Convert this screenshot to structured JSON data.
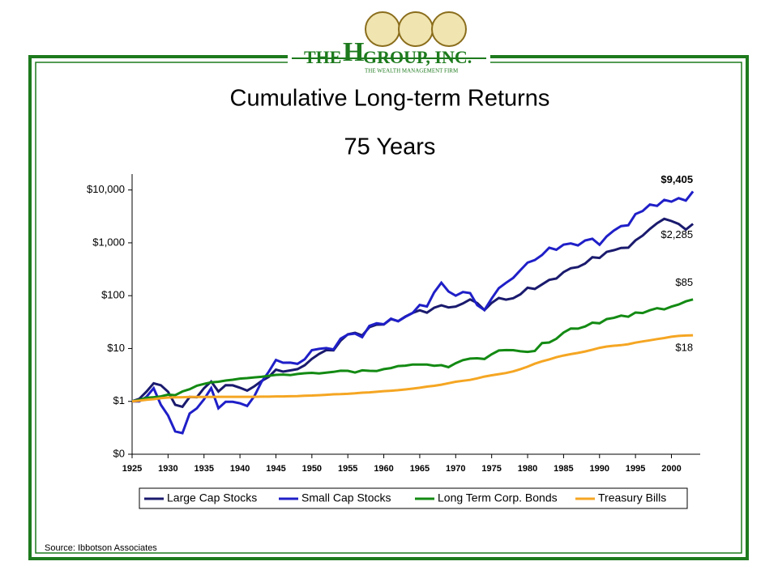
{
  "header": {
    "logo_the": "THE",
    "logo_h": "H",
    "logo_group": "GROUP, INC.",
    "logo_tagline": "THE WEALTH MANAGEMENT FIRM"
  },
  "chart_data": {
    "type": "line",
    "title": "Cumulative Long-term Returns",
    "subtitle": "75 Years",
    "source": "Source: Ibbotson Associates",
    "log_scale": true,
    "legend": "bottom",
    "x": [
      1925,
      1926,
      1927,
      1928,
      1929,
      1930,
      1931,
      1932,
      1933,
      1934,
      1935,
      1936,
      1937,
      1938,
      1939,
      1940,
      1941,
      1942,
      1943,
      1944,
      1945,
      1946,
      1947,
      1948,
      1949,
      1950,
      1951,
      1952,
      1953,
      1954,
      1955,
      1956,
      1957,
      1958,
      1959,
      1960,
      1961,
      1962,
      1963,
      1964,
      1965,
      1966,
      1967,
      1968,
      1969,
      1970,
      1971,
      1972,
      1973,
      1974,
      1975,
      1976,
      1977,
      1978,
      1979,
      1980,
      1981,
      1982,
      1983,
      1984,
      1985,
      1986,
      1987,
      1988,
      1989,
      1990,
      1991,
      1992,
      1993,
      1994,
      1995,
      1996,
      1997,
      1998,
      1999,
      2000,
      2001,
      2002,
      2003
    ],
    "xlim": [
      1925,
      2004
    ],
    "xticks": [
      1925,
      1930,
      1935,
      1940,
      1945,
      1950,
      1955,
      1960,
      1965,
      1970,
      1975,
      1980,
      1985,
      1990,
      1995,
      2000
    ],
    "ylim": [
      0.1,
      20000
    ],
    "yticks": [
      {
        "value": 0.1,
        "label": "$0"
      },
      {
        "value": 1,
        "label": "$1"
      },
      {
        "value": 10,
        "label": "$10"
      },
      {
        "value": 100,
        "label": "$100"
      },
      {
        "value": 1000,
        "label": "$1,000"
      },
      {
        "value": 10000,
        "label": "$10,000"
      }
    ],
    "series": [
      {
        "name": "Large Cap Stocks",
        "color": "#1a1a6e",
        "end_label": "$2,285",
        "values": [
          1,
          1.12,
          1.53,
          2.2,
          2.02,
          1.52,
          0.86,
          0.79,
          1.21,
          1.2,
          1.77,
          2.37,
          1.54,
          2.02,
          2.01,
          1.81,
          1.6,
          1.93,
          2.43,
          2.91,
          3.97,
          3.65,
          3.85,
          4.07,
          4.83,
          6.36,
          7.89,
          9.34,
          9.24,
          14.1,
          18.6,
          19.8,
          17.7,
          25.3,
          28.3,
          28.5,
          36.1,
          33,
          40.4,
          47.1,
          53,
          47.7,
          59.1,
          65.6,
          60,
          62.4,
          71.3,
          84.9,
          72.4,
          53.3,
          73.1,
          90.6,
          84,
          89.6,
          106,
          141,
          134,
          163,
          199,
          211,
          279,
          331,
          348,
          406,
          534,
          517,
          675,
          727,
          800,
          810,
          1113,
          1371,
          1828,
          2351,
          2846,
          2587,
          2279,
          1776,
          2285
        ]
      },
      {
        "name": "Small Cap Stocks",
        "color": "#1f1fc8",
        "end_label": "$9,405",
        "values": [
          1,
          1,
          1.22,
          1.77,
          0.86,
          0.54,
          0.27,
          0.25,
          0.59,
          0.74,
          1.09,
          1.78,
          0.74,
          0.98,
          0.98,
          0.92,
          0.82,
          1.25,
          2.34,
          3.63,
          6.08,
          5.39,
          5.41,
          5.13,
          6.25,
          9.32,
          9.86,
          10.2,
          9.6,
          15.4,
          18.4,
          19.2,
          16.4,
          26.8,
          30,
          28.8,
          36.7,
          32.8,
          39.8,
          47,
          66.8,
          62.6,
          115,
          176,
          120,
          99.9,
          117,
          112,
          65.9,
          53.6,
          88.3,
          139,
          175,
          217,
          305,
          421,
          472,
          588,
          809,
          740,
          924,
          974,
          893,
          1108,
          1194,
          921,
          1329,
          1713,
          2077,
          2149,
          3500,
          4000,
          5300,
          5000,
          6500,
          6000,
          7000,
          6300,
          9405
        ]
      },
      {
        "name": "Long Term Corp. Bonds",
        "color": "#138a13",
        "end_label": "$85",
        "values": [
          1,
          1.07,
          1.17,
          1.2,
          1.24,
          1.34,
          1.31,
          1.54,
          1.7,
          1.98,
          2.14,
          2.29,
          2.35,
          2.48,
          2.57,
          2.7,
          2.76,
          2.84,
          2.92,
          3.05,
          3.17,
          3.22,
          3.14,
          3.3,
          3.4,
          3.47,
          3.38,
          3.5,
          3.61,
          3.8,
          3.78,
          3.52,
          3.86,
          3.78,
          3.74,
          4.08,
          4.27,
          4.66,
          4.75,
          4.98,
          4.96,
          4.97,
          4.72,
          4.84,
          4.43,
          5.28,
          6.04,
          6.45,
          6.53,
          6.33,
          7.81,
          9.16,
          9.33,
          9.29,
          8.86,
          8.65,
          8.98,
          12.7,
          13,
          15.3,
          20.1,
          23.9,
          23.8,
          26.2,
          30.9,
          30,
          36,
          38,
          42,
          40,
          48,
          47,
          53,
          58,
          55,
          62,
          68,
          78,
          85
        ]
      },
      {
        "name": "Treasury Bills",
        "color": "#f5a623",
        "end_label": "$18",
        "values": [
          1,
          1.03,
          1.07,
          1.1,
          1.15,
          1.18,
          1.19,
          1.2,
          1.21,
          1.21,
          1.21,
          1.21,
          1.22,
          1.22,
          1.22,
          1.22,
          1.22,
          1.22,
          1.23,
          1.23,
          1.24,
          1.24,
          1.25,
          1.26,
          1.28,
          1.29,
          1.31,
          1.33,
          1.36,
          1.37,
          1.39,
          1.42,
          1.46,
          1.48,
          1.52,
          1.56,
          1.59,
          1.63,
          1.68,
          1.74,
          1.81,
          1.9,
          1.97,
          2.07,
          2.21,
          2.35,
          2.45,
          2.55,
          2.73,
          2.95,
          3.12,
          3.27,
          3.44,
          3.69,
          4.07,
          4.53,
          5.17,
          5.72,
          6.22,
          6.84,
          7.36,
          7.82,
          8.24,
          8.78,
          9.52,
          10.3,
          10.9,
          11.3,
          11.6,
          12.1,
          12.9,
          13.6,
          14.3,
          15.1,
          15.8,
          16.7,
          17.3,
          17.6,
          17.8
        ]
      }
    ]
  }
}
